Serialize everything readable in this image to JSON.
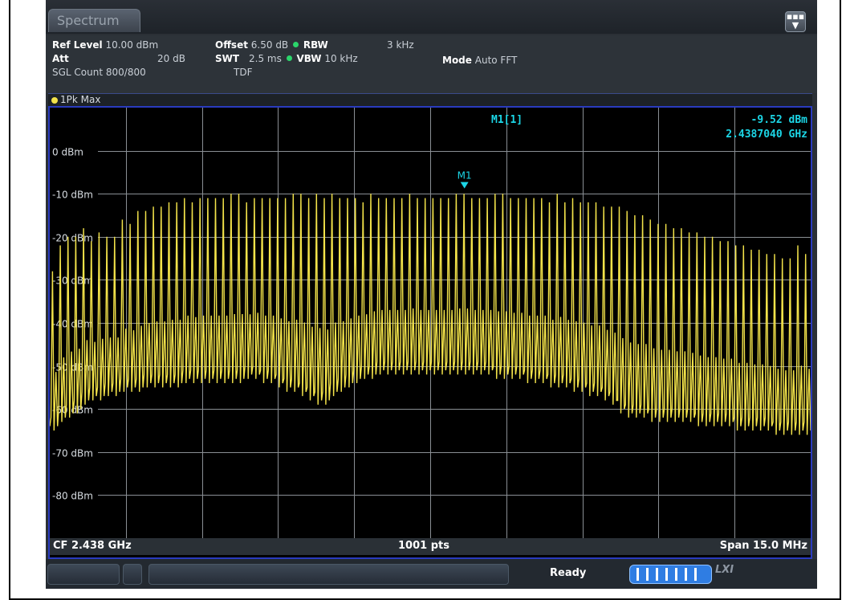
{
  "tab": {
    "title": "Spectrum"
  },
  "menu": {
    "icon": "more-menu-icon"
  },
  "settings": {
    "ref_level_label": "Ref Level",
    "ref_level_value": "10.00 dBm",
    "att_label": "Att",
    "att_value": "20 dB",
    "sgl_count": "SGL Count 800/800",
    "offset_label": "Offset",
    "offset_value": "6.50 dB",
    "swt_label": "SWT",
    "swt_value": "2.5 ms",
    "tdf": "TDF",
    "rbw_label": "RBW",
    "rbw_value": "3 kHz",
    "vbw_label": "VBW",
    "vbw_value": "10 kHz",
    "mode_label": "Mode",
    "mode_value": "Auto FFT"
  },
  "trace": {
    "label": "1Pk Max",
    "color": "#f3e34a"
  },
  "marker": {
    "title": "M1[1]",
    "level": "-9.52 dBm",
    "freq": "2.4387040 GHz",
    "tag": "M1",
    "color": "#1cd6e6"
  },
  "footer": {
    "cf": "CF 2.438 GHz",
    "points": "1001 pts",
    "span": "Span 15.0 MHz"
  },
  "status": {
    "ready": "Ready",
    "lxi": "LXI"
  },
  "chart_data": {
    "type": "line",
    "ylim": [
      -90,
      10
    ],
    "yticks": [
      "0 dBm",
      "-10 dBm",
      "-20 dBm",
      "-30 dBm",
      "-40 dBm",
      "-50 dBm",
      "-60 dBm",
      "-70 dBm",
      "-80 dBm"
    ],
    "ytick_values": [
      0,
      -10,
      -20,
      -30,
      -40,
      -50,
      -60,
      -70,
      -80
    ],
    "center_ghz": 2.438,
    "span_mhz": 15.0,
    "grid": true,
    "series": [
      {
        "peaks_dbm": [
          -28,
          -22,
          -20,
          -20,
          -18,
          -21,
          -19,
          -20,
          -20,
          -16,
          -17,
          -14,
          -14,
          -13,
          -13,
          -12,
          -12,
          -11,
          -12,
          -11,
          -11,
          -11,
          -11,
          -10,
          -10,
          -12,
          -11,
          -11,
          -11,
          -11,
          -11,
          -10,
          -10,
          -11,
          -10,
          -11,
          -10,
          -11,
          -11,
          -11,
          -12,
          -10,
          -11,
          -11,
          -11,
          -11,
          -10,
          -11,
          -11,
          -11,
          -11,
          -11,
          -10,
          -10,
          -11,
          -11,
          -11,
          -10,
          -10,
          -11,
          -11,
          -11,
          -11,
          -11,
          -12,
          -10,
          -12,
          -11,
          -12,
          -12,
          -12,
          -13,
          -13,
          -13,
          -14,
          -15,
          -15,
          -16,
          -17,
          -17,
          -18,
          -18,
          -19,
          -19,
          -20,
          -20,
          -21,
          -21,
          -22,
          -22,
          -23,
          -23,
          -24,
          -24,
          -25,
          -25,
          -22,
          -24
        ],
        "floor_dbm": [
          -64,
          -62,
          -61,
          -60,
          -58,
          -57,
          -57,
          -56,
          -56,
          -55,
          -55,
          -55,
          -54,
          -54,
          -54,
          -54,
          -54,
          -53,
          -53,
          -53,
          -53,
          -53,
          -53,
          -53,
          -53,
          -52,
          -52,
          -53,
          -53,
          -54,
          -55,
          -55,
          -56,
          -57,
          -58,
          -58,
          -56,
          -55,
          -54,
          -53,
          -52,
          -52,
          -51,
          -51,
          -51,
          -51,
          -51,
          -51,
          -51,
          -51,
          -51,
          -51,
          -51,
          -51,
          -51,
          -51,
          -51,
          -52,
          -52,
          -52,
          -52,
          -53,
          -53,
          -53,
          -54,
          -54,
          -54,
          -55,
          -55,
          -56,
          -56,
          -57,
          -58,
          -60,
          -61,
          -61,
          -61,
          -62,
          -62,
          -62,
          -62,
          -62,
          -62,
          -63,
          -63,
          -63,
          -63,
          -63,
          -64,
          -64,
          -64,
          -64,
          -64,
          -65,
          -65,
          -65,
          -65,
          -65
        ]
      }
    ],
    "marker_m1_dbm": -9.52,
    "marker_m1_pos": 0.545
  }
}
